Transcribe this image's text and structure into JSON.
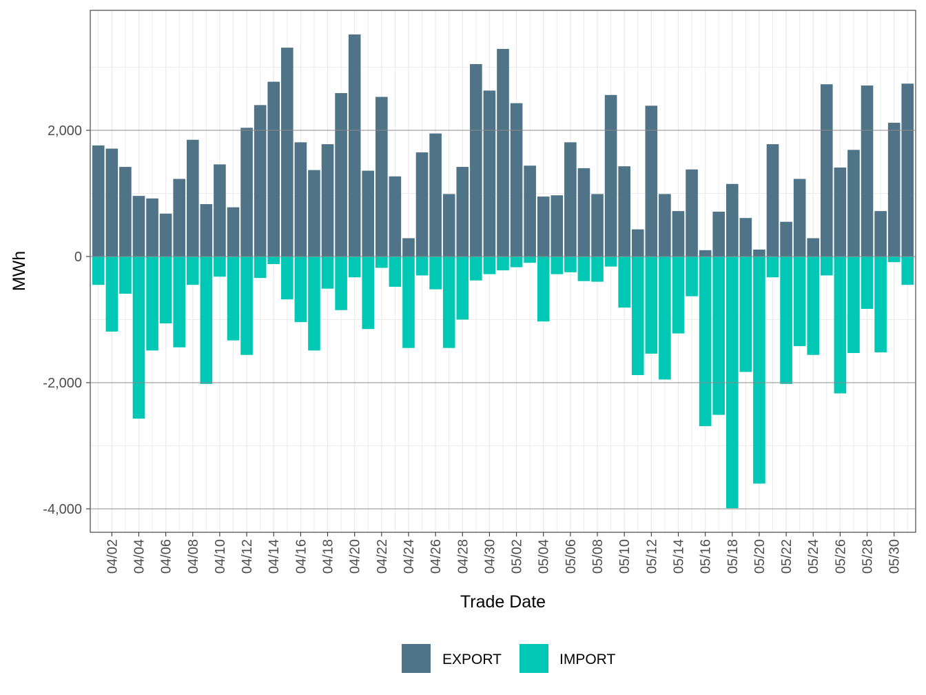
{
  "colors": {
    "export": "#4f7387",
    "import": "#00c8b4"
  },
  "chart_data": {
    "type": "bar",
    "stacked": "diverging",
    "title": "",
    "xlabel": "Trade Date",
    "ylabel": "MWh",
    "ylim": [
      -4300,
      3950
    ],
    "y_ticks": [
      -4000,
      -2000,
      0,
      2000
    ],
    "y_tick_labels": [
      "-4,000",
      "-2,000",
      "0",
      "2,000"
    ],
    "categories": [
      "04/01",
      "04/02",
      "04/03",
      "04/04",
      "04/05",
      "04/06",
      "04/07",
      "04/08",
      "04/09",
      "04/10",
      "04/11",
      "04/12",
      "04/13",
      "04/14",
      "04/15",
      "04/16",
      "04/17",
      "04/18",
      "04/19",
      "04/20",
      "04/21",
      "04/22",
      "04/23",
      "04/24",
      "04/25",
      "04/26",
      "04/27",
      "04/28",
      "04/29",
      "04/30",
      "05/01",
      "05/02",
      "05/03",
      "05/04",
      "05/05",
      "05/06",
      "05/07",
      "05/08",
      "05/09",
      "05/10",
      "05/11",
      "05/12",
      "05/13",
      "05/14",
      "05/15",
      "05/16",
      "05/17",
      "05/18",
      "05/19",
      "05/20",
      "05/21",
      "05/22",
      "05/23",
      "05/24",
      "05/25",
      "05/26",
      "05/27",
      "05/28",
      "05/29",
      "05/30",
      "05/31"
    ],
    "x_tick_labels": [
      "04/02",
      "04/04",
      "04/06",
      "04/08",
      "04/10",
      "04/12",
      "04/14",
      "04/16",
      "04/18",
      "04/20",
      "04/22",
      "04/24",
      "04/26",
      "04/28",
      "04/30",
      "05/02",
      "05/04",
      "05/06",
      "05/08",
      "05/10",
      "05/12",
      "05/14",
      "05/16",
      "05/18",
      "05/20",
      "05/22",
      "05/24",
      "05/26",
      "05/28",
      "05/30"
    ],
    "series": [
      {
        "name": "EXPORT",
        "values": [
          1760,
          1710,
          1420,
          960,
          920,
          680,
          1230,
          1850,
          830,
          1460,
          780,
          2040,
          2400,
          2770,
          3310,
          1810,
          1370,
          1780,
          2590,
          3520,
          1360,
          2530,
          1270,
          290,
          1650,
          1950,
          990,
          1420,
          3050,
          2630,
          3290,
          2430,
          1440,
          950,
          970,
          1810,
          1400,
          990,
          2560,
          1430,
          430,
          2390,
          990,
          720,
          1380,
          100,
          710,
          1150,
          610,
          110,
          1780,
          550,
          1230,
          290,
          2730,
          1410,
          1690,
          2710,
          720,
          2120,
          2740
        ]
      },
      {
        "name": "IMPORT",
        "values": [
          -450,
          -1190,
          -590,
          -2570,
          -1490,
          -1060,
          -1440,
          -450,
          -2020,
          -320,
          -1330,
          -1560,
          -340,
          -120,
          -680,
          -1040,
          -1490,
          -510,
          -850,
          -330,
          -1150,
          -180,
          -480,
          -1450,
          -300,
          -520,
          -1450,
          -1000,
          -380,
          -280,
          -220,
          -170,
          -100,
          -1030,
          -280,
          -250,
          -390,
          -400,
          -160,
          -810,
          -1880,
          -1540,
          -1950,
          -1220,
          -630,
          -2690,
          -2510,
          -3990,
          -1830,
          -3600,
          -330,
          -2020,
          -1420,
          -1560,
          -300,
          -2170,
          -1530,
          -830,
          -1520,
          -90,
          -450
        ]
      }
    ],
    "legend": {
      "position": "bottom",
      "entries": [
        "EXPORT",
        "IMPORT"
      ]
    },
    "grid": true
  }
}
